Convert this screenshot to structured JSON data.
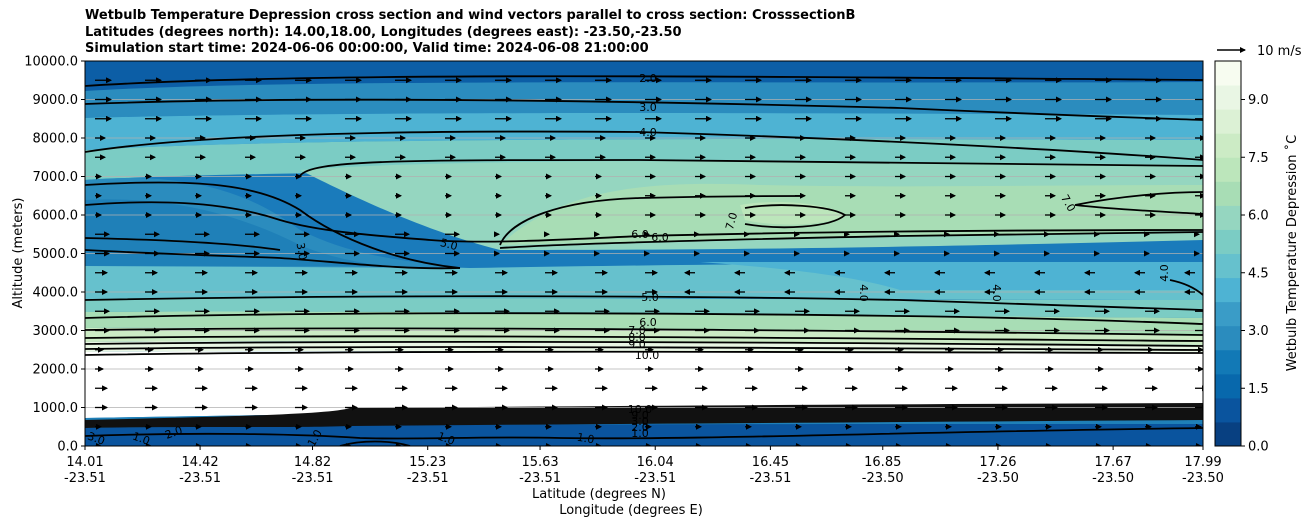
{
  "chart_data": {
    "type": "contour",
    "title_lines": [
      "Wetbulb Temperature Depression cross section and wind vectors parallel to cross section: CrosssectionB",
      "Latitudes (degrees north): 14.00,18.00, Longitudes (degrees east): -23.50,-23.50",
      "Simulation start time: 2024-06-06 00:00:00, Valid time: 2024-06-08 21:00:00"
    ],
    "ylabel": "Altitude (meters)",
    "xlabel_lat": "Latitude (degrees N)",
    "xlabel_lon": "Longitude (degrees E)",
    "ylim": [
      0,
      10000
    ],
    "y_ticks": [
      "0.0",
      "1000.0",
      "2000.0",
      "3000.0",
      "4000.0",
      "5000.0",
      "6000.0",
      "7000.0",
      "8000.0",
      "9000.0",
      "10000.0"
    ],
    "x_ticks": [
      {
        "lat": "14.01",
        "lon": "-23.51"
      },
      {
        "lat": "14.42",
        "lon": "-23.51"
      },
      {
        "lat": "14.82",
        "lon": "-23.51"
      },
      {
        "lat": "15.23",
        "lon": "-23.51"
      },
      {
        "lat": "15.63",
        "lon": "-23.51"
      },
      {
        "lat": "16.04",
        "lon": "-23.51"
      },
      {
        "lat": "16.45",
        "lon": "-23.51"
      },
      {
        "lat": "16.85",
        "lon": "-23.50"
      },
      {
        "lat": "17.26",
        "lon": "-23.50"
      },
      {
        "lat": "17.67",
        "lon": "-23.50"
      },
      {
        "lat": "17.99",
        "lon": "-23.50"
      }
    ],
    "colorbar": {
      "label": "Wetbulb Temperature Depression ˚C",
      "range": [
        0,
        10
      ],
      "ticks": [
        "0.0",
        "1.5",
        "3.0",
        "4.5",
        "6.0",
        "7.5",
        "9.0"
      ],
      "colors": [
        "#084081",
        "#0a549e",
        "#0868ac",
        "#1279b6",
        "#2b8cbe",
        "#3a9cc7",
        "#4eb3d3",
        "#66c1cd",
        "#7bccc4",
        "#95d6c0",
        "#a8ddb5",
        "#bce6bb",
        "#ccebc5",
        "#dcf1d5",
        "#e9f6e4",
        "#f7fcf0"
      ]
    },
    "quiver_key": "10 m/s",
    "contour_labels": [
      {
        "text": "2.0"
      },
      {
        "text": "3.0"
      },
      {
        "text": "4.0"
      },
      {
        "text": "7.0"
      },
      {
        "text": "6.0"
      },
      {
        "text": "6.0"
      },
      {
        "text": "7.0"
      },
      {
        "text": "5.0"
      },
      {
        "text": "3.0"
      },
      {
        "text": "4.0"
      },
      {
        "text": "4.0"
      },
      {
        "text": "4.0"
      },
      {
        "text": "5.0"
      },
      {
        "text": "6.0"
      },
      {
        "text": "7.0"
      },
      {
        "text": "8.0"
      },
      {
        "text": "9.0"
      },
      {
        "text": "10.0"
      },
      {
        "text": "10.0"
      },
      {
        "text": "9.0"
      },
      {
        "text": "3.0"
      },
      {
        "text": "2.0"
      },
      {
        "text": "1.0"
      },
      {
        "text": "1.0"
      },
      {
        "text": "1.0"
      },
      {
        "text": "1.0"
      },
      {
        "text": "3.0"
      },
      {
        "text": "2.0"
      },
      {
        "text": "1.0"
      }
    ]
  }
}
